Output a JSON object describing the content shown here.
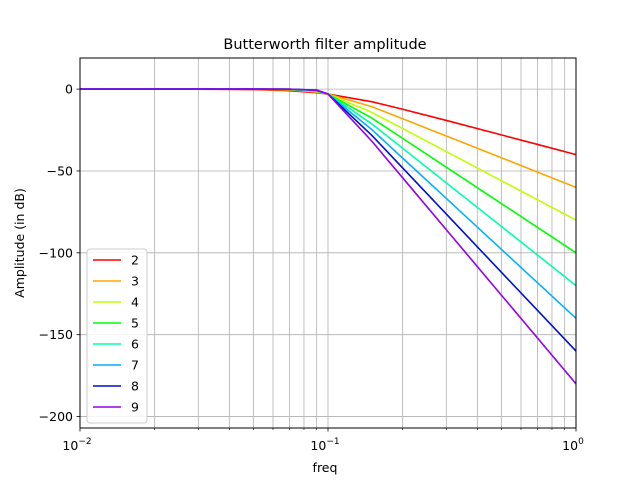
{
  "chart_data": {
    "type": "line",
    "title": "Butterworth filter amplitude",
    "xlabel": "freq",
    "ylabel": "Amplitude (in dB)",
    "xscale": "log",
    "xlim": [
      0.01,
      1
    ],
    "ylim": [
      -207,
      19
    ],
    "xticks": [
      {
        "value": 0.01,
        "label": "10",
        "sup": "−2"
      },
      {
        "value": 0.1,
        "label": "10",
        "sup": "−1"
      },
      {
        "value": 1,
        "label": "10",
        "sup": "0"
      }
    ],
    "yticks": [
      {
        "value": 0,
        "label": "0"
      },
      {
        "value": -50,
        "label": "−50"
      },
      {
        "value": -100,
        "label": "−100"
      },
      {
        "value": -150,
        "label": "−150"
      },
      {
        "value": -200,
        "label": "−200"
      }
    ],
    "grid": "both (major and minor)",
    "legend_position": "lower-left",
    "cutoff_frequency": 0.1,
    "x": [
      0.01,
      0.02,
      0.03,
      0.05,
      0.07,
      0.09,
      0.1,
      0.15,
      0.2,
      0.3,
      0.5,
      0.7,
      1.0
    ],
    "series": [
      {
        "name": "2",
        "color": "#ff0000",
        "values": [
          0.0,
          0.0,
          -0.03,
          -0.26,
          -0.97,
          -2.18,
          -3.01,
          -7.7,
          -12.3,
          -19.13,
          -27.97,
          -33.8,
          -40.0
        ]
      },
      {
        "name": "3",
        "color": "#ffa500",
        "values": [
          0.0,
          0.0,
          0.0,
          -0.07,
          -0.47,
          -1.79,
          -3.01,
          -10.7,
          -18.13,
          -28.63,
          -41.94,
          -50.7,
          -60.0
        ]
      },
      {
        "name": "4",
        "color": "#bfff00",
        "values": [
          0.0,
          0.0,
          0.0,
          -0.02,
          -0.23,
          -1.48,
          -3.01,
          -14.17,
          -24.1,
          -38.17,
          -55.92,
          -67.61,
          -80.0
        ]
      },
      {
        "name": "5",
        "color": "#00ff00",
        "values": [
          0.0,
          0.0,
          0.0,
          -0.01,
          -0.12,
          -1.22,
          -3.01,
          -17.63,
          -30.1,
          -47.71,
          -69.9,
          -84.51,
          -100.0
        ]
      },
      {
        "name": "6",
        "color": "#00ffaa",
        "values": [
          0.0,
          0.0,
          0.0,
          0.0,
          -0.06,
          -1.0,
          -3.01,
          -21.14,
          -36.12,
          -57.25,
          -83.88,
          -101.41,
          -120.0
        ]
      },
      {
        "name": "7",
        "color": "#00b0ff",
        "values": [
          0.0,
          0.0,
          0.0,
          0.0,
          -0.03,
          -0.83,
          -3.01,
          -24.65,
          -42.14,
          -66.79,
          -97.86,
          -118.31,
          -140.0
        ]
      },
      {
        "name": "8",
        "color": "#0011cc",
        "values": [
          0.0,
          0.0,
          0.0,
          0.0,
          -0.01,
          -0.69,
          -3.01,
          -28.17,
          -48.16,
          -76.34,
          -111.84,
          -135.21,
          -160.0
        ]
      },
      {
        "name": "9",
        "color": "#9400ee",
        "values": [
          0.0,
          0.0,
          0.0,
          0.0,
          -0.01,
          -0.57,
          -3.01,
          -31.69,
          -54.19,
          -85.88,
          -125.82,
          -152.11,
          -180.0
        ]
      }
    ]
  }
}
